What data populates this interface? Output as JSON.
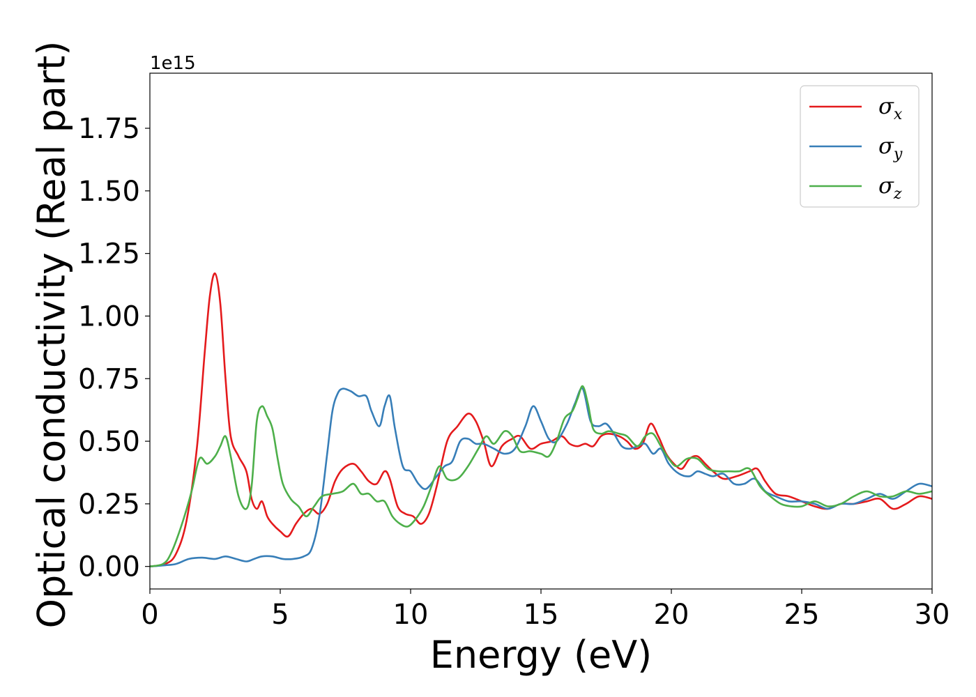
{
  "chart_data": {
    "type": "line",
    "xlabel": "Energy (eV)",
    "ylabel": "Optical conductivity (Real part)",
    "y_offset_label": "1e15",
    "xlim": [
      0,
      30
    ],
    "ylim": [
      -0.09,
      1.97
    ],
    "x_ticks": [
      0,
      5,
      10,
      15,
      20,
      25,
      30
    ],
    "x_tick_labels": [
      "0",
      "5",
      "10",
      "15",
      "20",
      "25",
      "30"
    ],
    "y_ticks": [
      0.0,
      0.25,
      0.5,
      0.75,
      1.0,
      1.25,
      1.5,
      1.75
    ],
    "y_tick_labels": [
      "0.00",
      "0.25",
      "0.50",
      "0.75",
      "1.00",
      "1.25",
      "1.50",
      "1.75"
    ],
    "grid": false,
    "legend_position": "top-right",
    "series": [
      {
        "name": "σ",
        "subscript": "x",
        "color": "#e41a1c",
        "x": [
          0,
          0.6,
          1.0,
          1.4,
          1.8,
          2.1,
          2.3,
          2.5,
          2.7,
          2.9,
          3.1,
          3.4,
          3.7,
          3.9,
          4.1,
          4.3,
          4.5,
          4.7,
          5.0,
          5.3,
          5.6,
          5.9,
          6.2,
          6.5,
          6.8,
          7.1,
          7.4,
          7.8,
          8.1,
          8.4,
          8.7,
          9.0,
          9.2,
          9.5,
          9.8,
          10.1,
          10.4,
          10.7,
          11.0,
          11.4,
          11.8,
          12.2,
          12.5,
          12.8,
          13.1,
          13.5,
          13.9,
          14.2,
          14.6,
          15.0,
          15.4,
          15.8,
          16.1,
          16.4,
          16.7,
          17.0,
          17.3,
          17.6,
          18.0,
          18.3,
          18.6,
          18.9,
          19.2,
          19.5,
          19.8,
          20.1,
          20.4,
          20.7,
          21.0,
          21.3,
          21.6,
          22.0,
          22.5,
          23.0,
          23.3,
          23.6,
          24.0,
          24.5,
          25.0,
          25.5,
          26.0,
          26.5,
          27.0,
          27.5,
          28.0,
          28.5,
          29.0,
          29.5,
          30.0
        ],
        "values": [
          0.0,
          0.01,
          0.05,
          0.18,
          0.47,
          0.85,
          1.08,
          1.17,
          1.05,
          0.75,
          0.52,
          0.44,
          0.38,
          0.27,
          0.23,
          0.26,
          0.2,
          0.17,
          0.14,
          0.12,
          0.17,
          0.21,
          0.23,
          0.21,
          0.25,
          0.34,
          0.39,
          0.41,
          0.38,
          0.34,
          0.33,
          0.38,
          0.35,
          0.24,
          0.21,
          0.2,
          0.17,
          0.21,
          0.32,
          0.5,
          0.56,
          0.61,
          0.58,
          0.5,
          0.4,
          0.48,
          0.51,
          0.52,
          0.47,
          0.49,
          0.5,
          0.52,
          0.49,
          0.48,
          0.49,
          0.48,
          0.52,
          0.53,
          0.52,
          0.5,
          0.47,
          0.49,
          0.57,
          0.52,
          0.45,
          0.41,
          0.39,
          0.43,
          0.44,
          0.41,
          0.38,
          0.35,
          0.36,
          0.38,
          0.39,
          0.34,
          0.29,
          0.28,
          0.26,
          0.24,
          0.23,
          0.25,
          0.25,
          0.26,
          0.27,
          0.23,
          0.25,
          0.28,
          0.27
        ]
      },
      {
        "name": "σ",
        "subscript": "y",
        "color": "#377eb8",
        "x": [
          0,
          0.6,
          1.0,
          1.5,
          2.0,
          2.5,
          2.9,
          3.3,
          3.7,
          4.0,
          4.3,
          4.7,
          5.1,
          5.5,
          5.9,
          6.2,
          6.5,
          6.8,
          7.0,
          7.2,
          7.4,
          7.7,
          8.0,
          8.3,
          8.5,
          8.8,
          9.0,
          9.2,
          9.4,
          9.7,
          10.0,
          10.3,
          10.6,
          11.0,
          11.3,
          11.6,
          11.9,
          12.2,
          12.5,
          12.8,
          13.2,
          13.6,
          14.0,
          14.4,
          14.7,
          15.0,
          15.3,
          15.6,
          16.0,
          16.3,
          16.6,
          16.9,
          17.2,
          17.5,
          17.8,
          18.1,
          18.4,
          18.7,
          19.0,
          19.3,
          19.6,
          19.9,
          20.3,
          20.7,
          21.0,
          21.3,
          21.6,
          22.0,
          22.4,
          22.8,
          23.2,
          23.6,
          24.0,
          24.5,
          25.0,
          25.5,
          26.0,
          26.5,
          27.0,
          27.5,
          28.0,
          28.5,
          29.0,
          29.5,
          30.0
        ],
        "values": [
          0.0,
          0.005,
          0.01,
          0.03,
          0.035,
          0.03,
          0.04,
          0.03,
          0.02,
          0.03,
          0.04,
          0.04,
          0.03,
          0.03,
          0.04,
          0.07,
          0.2,
          0.45,
          0.62,
          0.69,
          0.71,
          0.7,
          0.68,
          0.68,
          0.62,
          0.56,
          0.64,
          0.68,
          0.55,
          0.4,
          0.38,
          0.33,
          0.31,
          0.36,
          0.4,
          0.42,
          0.5,
          0.51,
          0.49,
          0.49,
          0.47,
          0.45,
          0.47,
          0.56,
          0.64,
          0.58,
          0.51,
          0.5,
          0.57,
          0.65,
          0.71,
          0.58,
          0.56,
          0.57,
          0.53,
          0.48,
          0.47,
          0.48,
          0.49,
          0.45,
          0.47,
          0.41,
          0.37,
          0.36,
          0.38,
          0.37,
          0.36,
          0.37,
          0.33,
          0.33,
          0.35,
          0.3,
          0.28,
          0.26,
          0.26,
          0.25,
          0.23,
          0.25,
          0.25,
          0.27,
          0.29,
          0.27,
          0.3,
          0.33,
          0.32
        ]
      },
      {
        "name": "σ",
        "subscript": "z",
        "color": "#4daf4a",
        "x": [
          0,
          0.5,
          0.8,
          1.2,
          1.6,
          1.9,
          2.2,
          2.5,
          2.7,
          2.9,
          3.1,
          3.4,
          3.7,
          3.9,
          4.1,
          4.3,
          4.5,
          4.7,
          4.9,
          5.1,
          5.4,
          5.7,
          6.0,
          6.3,
          6.6,
          7.0,
          7.4,
          7.8,
          8.1,
          8.4,
          8.7,
          9.0,
          9.3,
          9.6,
          9.9,
          10.2,
          10.5,
          10.8,
          11.1,
          11.4,
          11.8,
          12.2,
          12.6,
          12.9,
          13.2,
          13.6,
          13.9,
          14.2,
          14.6,
          15.0,
          15.3,
          15.6,
          15.9,
          16.2,
          16.4,
          16.6,
          16.8,
          17.0,
          17.3,
          17.6,
          18.0,
          18.3,
          18.7,
          19.0,
          19.3,
          19.6,
          19.9,
          20.2,
          20.6,
          21.0,
          21.4,
          21.8,
          22.2,
          22.6,
          23.0,
          23.4,
          23.8,
          24.2,
          24.6,
          25.0,
          25.5,
          26.0,
          26.5,
          27.0,
          27.5,
          28.0,
          28.5,
          29.0,
          29.5,
          30.0
        ],
        "values": [
          0.0,
          0.01,
          0.05,
          0.16,
          0.3,
          0.43,
          0.41,
          0.44,
          0.48,
          0.52,
          0.44,
          0.28,
          0.23,
          0.32,
          0.58,
          0.64,
          0.6,
          0.55,
          0.43,
          0.33,
          0.27,
          0.24,
          0.2,
          0.24,
          0.28,
          0.29,
          0.3,
          0.33,
          0.29,
          0.29,
          0.26,
          0.26,
          0.2,
          0.17,
          0.16,
          0.19,
          0.24,
          0.32,
          0.4,
          0.35,
          0.35,
          0.4,
          0.47,
          0.52,
          0.49,
          0.54,
          0.52,
          0.46,
          0.46,
          0.45,
          0.44,
          0.5,
          0.59,
          0.62,
          0.67,
          0.72,
          0.65,
          0.55,
          0.53,
          0.54,
          0.53,
          0.52,
          0.48,
          0.52,
          0.53,
          0.48,
          0.43,
          0.4,
          0.43,
          0.43,
          0.39,
          0.38,
          0.38,
          0.38,
          0.39,
          0.32,
          0.28,
          0.25,
          0.24,
          0.24,
          0.26,
          0.24,
          0.25,
          0.28,
          0.3,
          0.28,
          0.28,
          0.3,
          0.29,
          0.3
        ]
      }
    ]
  }
}
